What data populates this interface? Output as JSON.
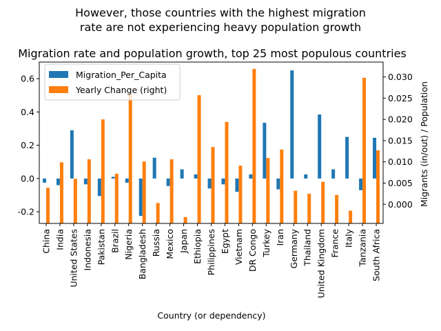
{
  "chart_data": {
    "type": "bar",
    "suptitle_line1": "However, those countries with the highest migration",
    "suptitle_line2": "rate are not experiencing heavy population growth",
    "title": "Migration rate and population growth, top 25 most populous countries",
    "xlabel": "Country (or dependency)",
    "ylabel_left": "",
    "ylabel_right": "Migrants (in/out) / Population",
    "categories": [
      "China",
      "India",
      "United States",
      "Indonesia",
      "Pakistan",
      "Brazil",
      "Nigeria",
      "Bangladesh",
      "Russia",
      "Mexico",
      "Japan",
      "Ethiopia",
      "Philippines",
      "Egypt",
      "Vietnam",
      "DR Congo",
      "Turkey",
      "Iran",
      "Germany",
      "Thailand",
      "United Kingdom",
      "France",
      "Italy",
      "Tanzania",
      "South Africa"
    ],
    "ylim_left": [
      -0.27,
      0.7
    ],
    "ylim_right": [
      -0.0045,
      0.0335
    ],
    "yticks_left": [
      "-0.2",
      "0.0",
      "0.2",
      "0.4",
      "0.6"
    ],
    "yticks_left_values": [
      -0.2,
      0.0,
      0.2,
      0.4,
      0.6
    ],
    "yticks_right": [
      "0.000",
      "0.005",
      "0.010",
      "0.015",
      "0.020",
      "0.025",
      "0.030"
    ],
    "yticks_right_values": [
      0.0,
      0.005,
      0.01,
      0.015,
      0.02,
      0.025,
      0.03
    ],
    "legend_position": "upper-left",
    "series": [
      {
        "name": "Migration_Per_Capita",
        "axis": "left",
        "color": "#1f77b4",
        "values": [
          -0.025,
          -0.04,
          0.29,
          -0.035,
          -0.105,
          0.01,
          -0.025,
          -0.225,
          0.125,
          -0.045,
          0.055,
          0.025,
          -0.06,
          -0.035,
          -0.08,
          0.025,
          0.335,
          -0.065,
          0.65,
          0.025,
          0.385,
          0.055,
          0.25,
          -0.07,
          0.245
        ]
      },
      {
        "name": "Yearly Change (right)",
        "axis": "right",
        "color": "#ff7f0e",
        "values": [
          0.0039,
          0.0099,
          0.006,
          0.0106,
          0.02,
          0.0072,
          0.0259,
          0.0101,
          0.0003,
          0.0106,
          -0.003,
          0.0257,
          0.0135,
          0.0194,
          0.0091,
          0.0319,
          0.0109,
          0.0129,
          0.0032,
          0.0025,
          0.0053,
          0.0022,
          -0.0015,
          0.0298,
          0.0127
        ]
      }
    ]
  }
}
